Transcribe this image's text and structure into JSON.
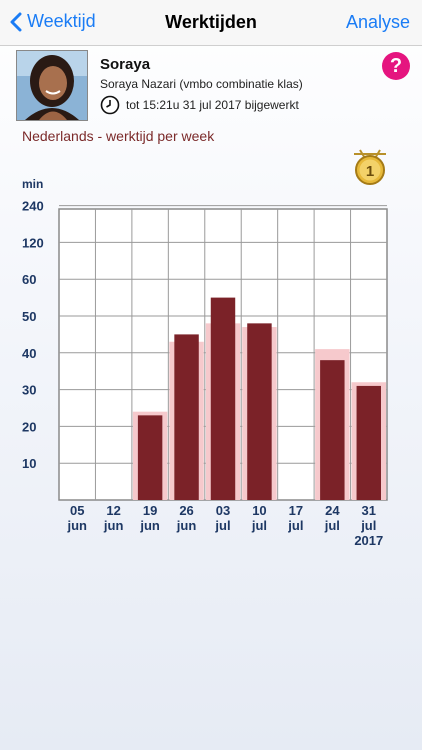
{
  "nav": {
    "back_label": "Weektijd",
    "title": "Werktijden",
    "right_label": "Analyse"
  },
  "student": {
    "name": "Soraya",
    "fullname": "Soraya Nazari (vmbo combinatie klas)",
    "updated": "tot 15:21u 31 jul 2017 bijgewerkt"
  },
  "subject_title": "Nederlands - werktijd per week",
  "medal_label": "1",
  "colors": {
    "accent": "#1a7cf5",
    "help": "#e5157f",
    "bar_dark": "#7b2228",
    "bar_light": "#f6c9cc",
    "subject_text": "#7b2a2a",
    "axis_text": "#1e3864"
  },
  "chart_data": {
    "type": "bar",
    "unit": "min",
    "y_ticks": [
      "10",
      "20",
      "30",
      "40",
      "50",
      "60",
      "120",
      "240"
    ],
    "y_tick_values": [
      10,
      20,
      30,
      40,
      50,
      60,
      120,
      240
    ],
    "categories": [
      [
        "05",
        "jun"
      ],
      [
        "12",
        "jun"
      ],
      [
        "19",
        "jun"
      ],
      [
        "26",
        "jun"
      ],
      [
        "03",
        "jul"
      ],
      [
        "10",
        "jul"
      ],
      [
        "17",
        "jul"
      ],
      [
        "24",
        "jul"
      ],
      [
        "31",
        "jul",
        "2017"
      ]
    ],
    "series": [
      {
        "values": [
          0,
          0,
          23,
          45,
          55,
          48,
          0,
          38,
          31
        ]
      },
      {
        "values": [
          0,
          0,
          24,
          43,
          48,
          47,
          0,
          41,
          32
        ]
      }
    ]
  }
}
